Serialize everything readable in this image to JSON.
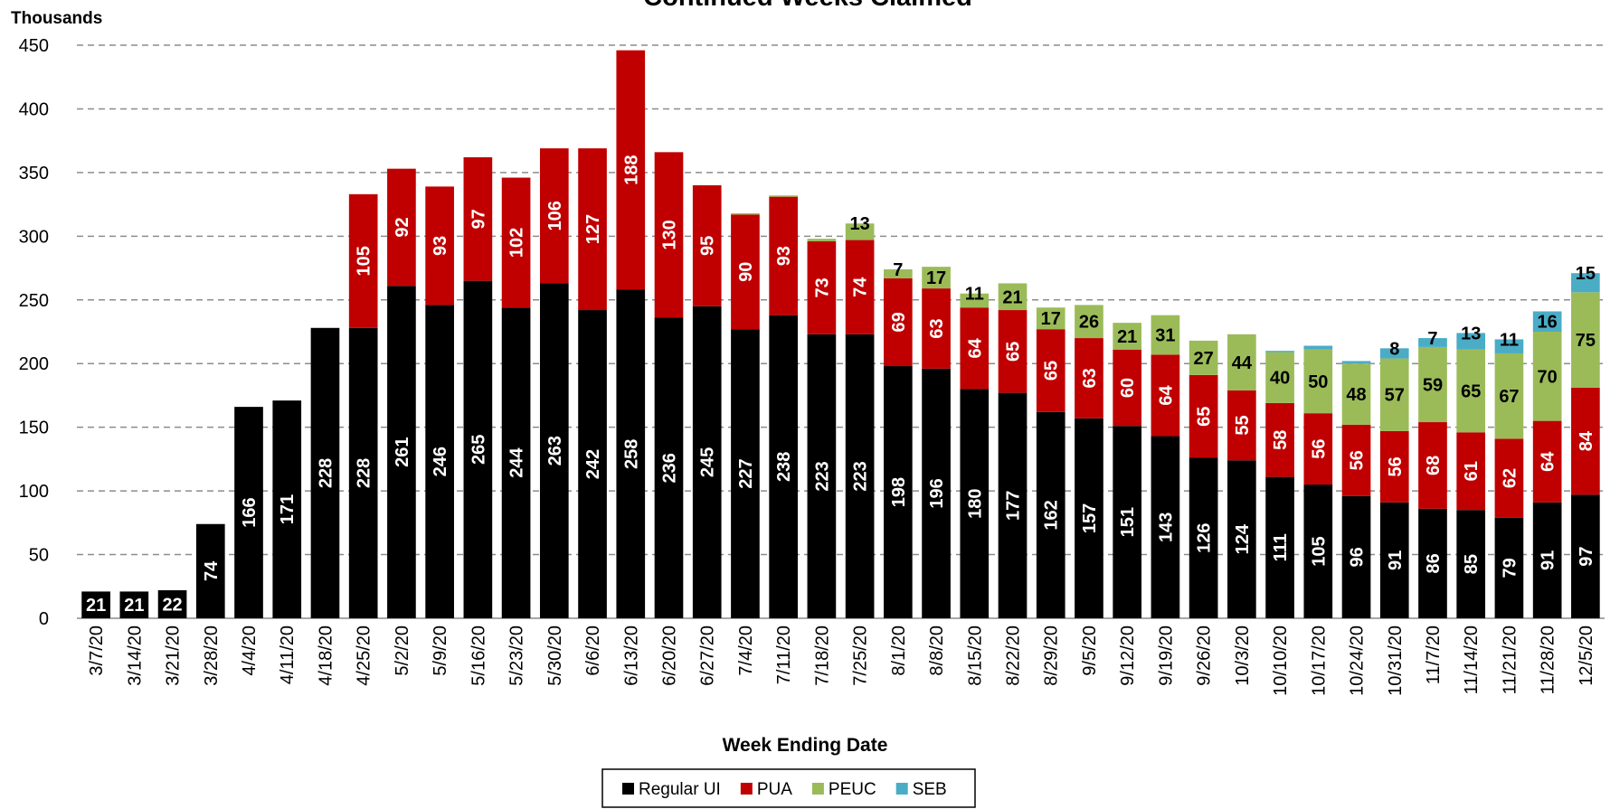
{
  "chart_data": {
    "type": "stacked_bar",
    "title": "Continued Weeks Claimed",
    "y_label": "Thousands",
    "x_label": "Week Ending Date",
    "categories": [
      "3/7/20",
      "3/14/20",
      "3/21/20",
      "3/28/20",
      "4/4/20",
      "4/11/20",
      "4/18/20",
      "4/25/20",
      "5/2/20",
      "5/9/20",
      "5/16/20",
      "5/23/20",
      "5/30/20",
      "6/6/20",
      "6/13/20",
      "6/20/20",
      "6/27/20",
      "7/4/20",
      "7/11/20",
      "7/18/20",
      "7/25/20",
      "8/1/20",
      "8/8/20",
      "8/15/20",
      "8/22/20",
      "8/29/20",
      "9/5/20",
      "9/12/20",
      "9/19/20",
      "9/26/20",
      "10/3/20",
      "10/10/20",
      "10/17/20",
      "10/24/20",
      "10/31/20",
      "11/7/20",
      "11/14/20",
      "11/21/20",
      "11/28/20",
      "12/5/20"
    ],
    "series": [
      {
        "name": "Regular UI",
        "color": "#000000",
        "label_color": "#ffffff",
        "values": [
          21,
          21,
          22,
          74,
          166,
          171,
          228,
          228,
          261,
          246,
          265,
          244,
          263,
          242,
          258,
          236,
          245,
          227,
          238,
          223,
          223,
          198,
          196,
          180,
          177,
          162,
          157,
          151,
          143,
          126,
          124,
          111,
          105,
          96,
          91,
          86,
          85,
          79,
          91,
          97
        ]
      },
      {
        "name": "PUA",
        "color": "#c00000",
        "label_color": "#ffffff",
        "values": [
          null,
          null,
          null,
          null,
          null,
          null,
          null,
          105,
          92,
          93,
          97,
          102,
          106,
          127,
          188,
          130,
          95,
          90,
          93,
          73,
          74,
          69,
          63,
          64,
          65,
          65,
          63,
          60,
          64,
          65,
          55,
          58,
          56,
          56,
          56,
          68,
          61,
          62,
          64,
          84
        ]
      },
      {
        "name": "PEUC",
        "color": "#9bbb59",
        "label_color": "#000000",
        "values": [
          null,
          null,
          null,
          null,
          null,
          null,
          null,
          null,
          null,
          null,
          null,
          null,
          null,
          null,
          null,
          null,
          null,
          1,
          1,
          2,
          13,
          7,
          17,
          11,
          21,
          17,
          26,
          21,
          31,
          27,
          44,
          40,
          50,
          48,
          57,
          59,
          65,
          67,
          70,
          75
        ]
      },
      {
        "name": "SEB",
        "color": "#4bacc6",
        "label_color": "#000000",
        "values": [
          null,
          null,
          null,
          null,
          null,
          null,
          null,
          null,
          null,
          null,
          null,
          null,
          null,
          null,
          null,
          null,
          null,
          null,
          null,
          null,
          null,
          null,
          null,
          null,
          null,
          null,
          null,
          null,
          null,
          null,
          null,
          1,
          3,
          2,
          8,
          7,
          13,
          11,
          16,
          15
        ]
      }
    ],
    "ylim": [
      0,
      450
    ],
    "yticks": [
      0,
      50,
      100,
      150,
      200,
      250,
      300,
      350,
      400,
      450
    ],
    "grid": true,
    "legend": "bottom"
  }
}
